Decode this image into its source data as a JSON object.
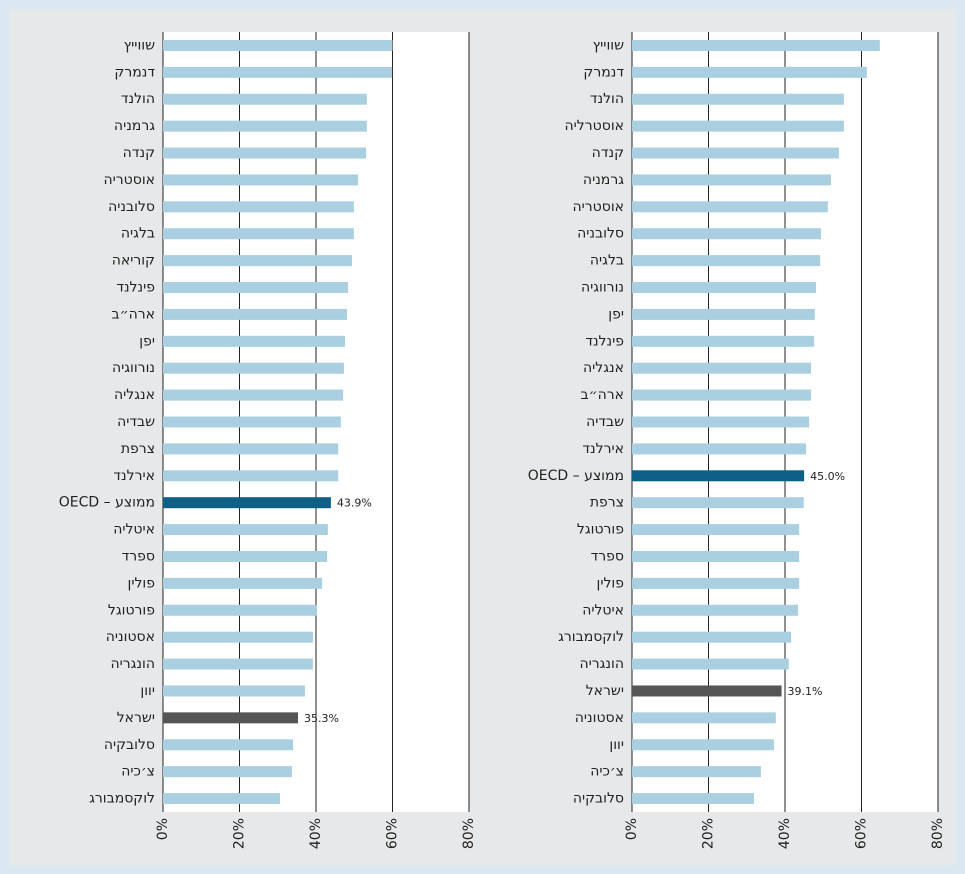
{
  "chart_data": [
    {
      "type": "bar",
      "categories": [
        "שווייץ",
        "דנמרק",
        "הולנד",
        "גרמניה",
        "קנדה",
        "אוסטריה",
        "סלובניה",
        "בלגיה",
        "קוריאה",
        "פינלנד",
        "ארה״ב",
        "יפן",
        "נורווגיה",
        "אנגליה",
        "שבדיה",
        "צרפת",
        "אירלנד",
        "ממוצע – OECD",
        "איטליה",
        "ספרד",
        "פולין",
        "פורטוגל",
        "אסטוניה",
        "הונגריה",
        "יוון",
        "ישראל",
        "סלובקיה",
        "צ׳כיה",
        "לוקסמבורג"
      ],
      "values": [
        60,
        59.9,
        53.3,
        53.3,
        53.1,
        51.0,
        49.9,
        49.9,
        49.4,
        48.4,
        48.1,
        47.6,
        47.3,
        47.1,
        46.5,
        45.8,
        45.8,
        43.9,
        43.1,
        42.9,
        41.6,
        40.3,
        39.2,
        39.2,
        37.1,
        35.3,
        34.0,
        33.7,
        30.6
      ],
      "value_labels": [
        null,
        null,
        null,
        null,
        null,
        null,
        null,
        null,
        null,
        null,
        null,
        null,
        null,
        null,
        null,
        null,
        null,
        "43.9%",
        null,
        null,
        null,
        null,
        null,
        null,
        null,
        "35.3%",
        null,
        null,
        null
      ],
      "colors": [
        "#a9cfe0",
        "#a9cfe0",
        "#a9cfe0",
        "#a9cfe0",
        "#a9cfe0",
        "#a9cfe0",
        "#a9cfe0",
        "#a9cfe0",
        "#a9cfe0",
        "#a9cfe0",
        "#a9cfe0",
        "#a9cfe0",
        "#a9cfe0",
        "#a9cfe0",
        "#a9cfe0",
        "#a9cfe0",
        "#a9cfe0",
        "#0e5f88",
        "#a9cfe0",
        "#a9cfe0",
        "#a9cfe0",
        "#a9cfe0",
        "#a9cfe0",
        "#a9cfe0",
        "#a9cfe0",
        "#555555",
        "#a9cfe0",
        "#a9cfe0",
        "#a9cfe0"
      ],
      "xlim": [
        0,
        80
      ],
      "xticks": [
        {
          "value": 0,
          "label": "0%"
        },
        {
          "value": 20,
          "label": "20%"
        },
        {
          "value": 40,
          "label": "40%"
        },
        {
          "value": 60,
          "label": "60%"
        },
        {
          "value": 80,
          "label": "80%"
        }
      ],
      "grid": true
    },
    {
      "type": "bar",
      "categories": [
        "שווייץ",
        "דנמרק",
        "הולנד",
        "אוסטרליה",
        "קנדה",
        "גרמניה",
        "אוסטריה",
        "סלובניה",
        "בלגיה",
        "נורווגיה",
        "יפן",
        "פינלנד",
        "אנגליה",
        "ארה״ב",
        "שבדיה",
        "אירלנד",
        "ממוצע – OECD",
        "צרפת",
        "פורטוגל",
        "ספרד",
        "פולין",
        "איטליה",
        "לוקסמבורג",
        "הונגריה",
        "ישראל",
        "אסטוניה",
        "יוון",
        "צ׳כיה",
        "סלובקיה"
      ],
      "values": [
        64.8,
        61.4,
        55.4,
        55.4,
        54.1,
        52.0,
        51.2,
        49.4,
        49.2,
        48.1,
        47.8,
        47.6,
        46.8,
        46.8,
        46.3,
        45.5,
        45.0,
        44.9,
        43.7,
        43.7,
        43.7,
        43.4,
        41.6,
        41.0,
        39.1,
        37.6,
        37.1,
        33.7,
        31.9
      ],
      "value_labels": [
        null,
        null,
        null,
        null,
        null,
        null,
        null,
        null,
        null,
        null,
        null,
        null,
        null,
        null,
        null,
        null,
        "45.0%",
        null,
        null,
        null,
        null,
        null,
        null,
        null,
        "39.1%",
        null,
        null,
        null,
        null
      ],
      "colors": [
        "#a9cfe0",
        "#a9cfe0",
        "#a9cfe0",
        "#a9cfe0",
        "#a9cfe0",
        "#a9cfe0",
        "#a9cfe0",
        "#a9cfe0",
        "#a9cfe0",
        "#a9cfe0",
        "#a9cfe0",
        "#a9cfe0",
        "#a9cfe0",
        "#a9cfe0",
        "#a9cfe0",
        "#a9cfe0",
        "#0e5f88",
        "#a9cfe0",
        "#a9cfe0",
        "#a9cfe0",
        "#a9cfe0",
        "#a9cfe0",
        "#a9cfe0",
        "#a9cfe0",
        "#555555",
        "#a9cfe0",
        "#a9cfe0",
        "#a9cfe0",
        "#a9cfe0"
      ],
      "xlim": [
        0,
        80
      ],
      "xticks": [
        {
          "value": 0,
          "label": "0%"
        },
        {
          "value": 20,
          "label": "20%"
        },
        {
          "value": 40,
          "label": "40%"
        },
        {
          "value": 60,
          "label": "60%"
        },
        {
          "value": 80,
          "label": "80%"
        }
      ],
      "grid": true
    }
  ]
}
